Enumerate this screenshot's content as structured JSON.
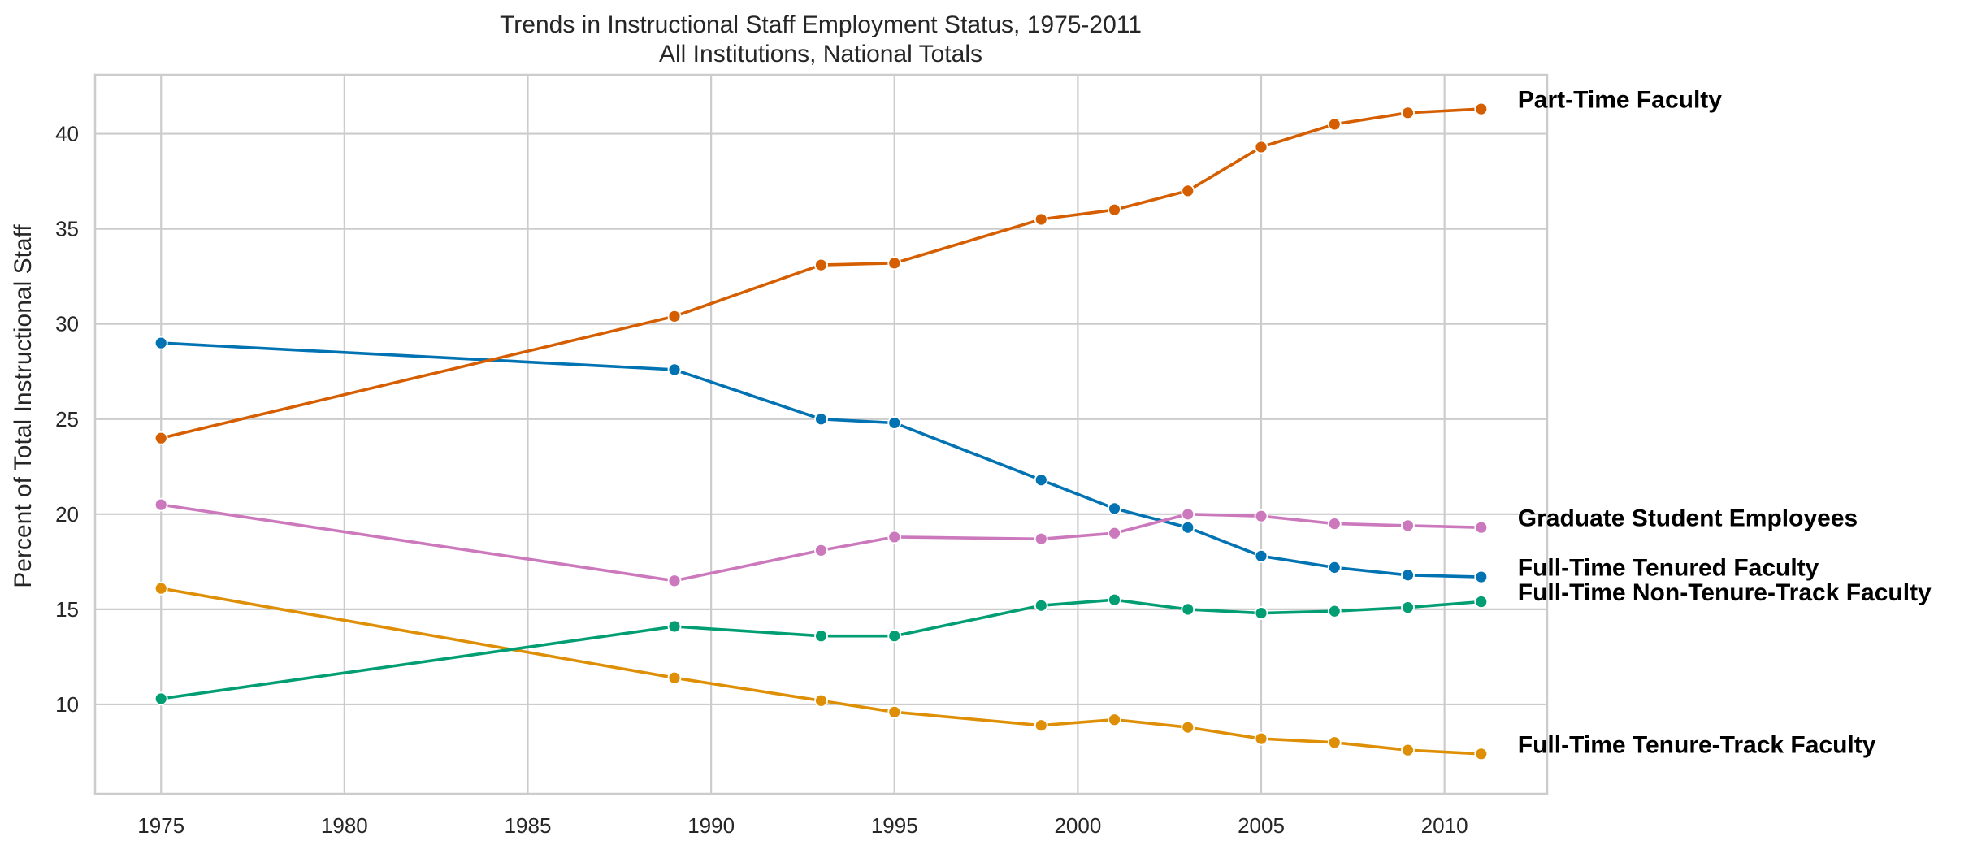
{
  "chart_data": {
    "type": "line",
    "title": "Trends in Instructional Staff Employment Status, 1975-2011",
    "subtitle": "All Institutions, National Totals",
    "xlabel": "",
    "ylabel": "Percent of Total Instructional Staff",
    "xlim": [
      1973.2,
      2012.8
    ],
    "ylim": [
      5.3,
      43.1
    ],
    "x_ticks": [
      1975,
      1980,
      1985,
      1990,
      1995,
      2000,
      2005,
      2010
    ],
    "y_ticks": [
      10,
      15,
      20,
      25,
      30,
      35,
      40
    ],
    "grid": true,
    "legend": "none (series labelled at line ends, right side)",
    "x": [
      1975,
      1989,
      1993,
      1995,
      1999,
      2001,
      2003,
      2005,
      2007,
      2009,
      2011
    ],
    "series": [
      {
        "name": "Full-Time Tenured Faculty",
        "color": "#0173b2",
        "values": [
          29.0,
          27.6,
          25.0,
          24.8,
          21.8,
          20.3,
          19.3,
          17.8,
          17.2,
          16.8,
          16.7
        ]
      },
      {
        "name": "Full-Time Tenure-Track Faculty",
        "color": "#de8f05",
        "values": [
          16.1,
          11.4,
          10.2,
          9.6,
          8.9,
          9.2,
          8.8,
          8.2,
          8.0,
          7.6,
          7.4
        ]
      },
      {
        "name": "Full-Time Non-Tenure-Track Faculty",
        "color": "#029e73",
        "values": [
          10.3,
          14.1,
          13.6,
          13.6,
          15.2,
          15.5,
          15.0,
          14.8,
          14.9,
          15.1,
          15.4
        ]
      },
      {
        "name": "Part-Time Faculty",
        "color": "#d55e00",
        "values": [
          24.0,
          30.4,
          33.1,
          33.2,
          35.5,
          36.0,
          37.0,
          39.3,
          40.5,
          41.1,
          41.3
        ]
      },
      {
        "name": "Graduate Student Employees",
        "color": "#cc78bc",
        "values": [
          20.5,
          16.5,
          18.1,
          18.8,
          18.7,
          19.0,
          20.0,
          19.9,
          19.5,
          19.4,
          19.3
        ]
      }
    ]
  }
}
